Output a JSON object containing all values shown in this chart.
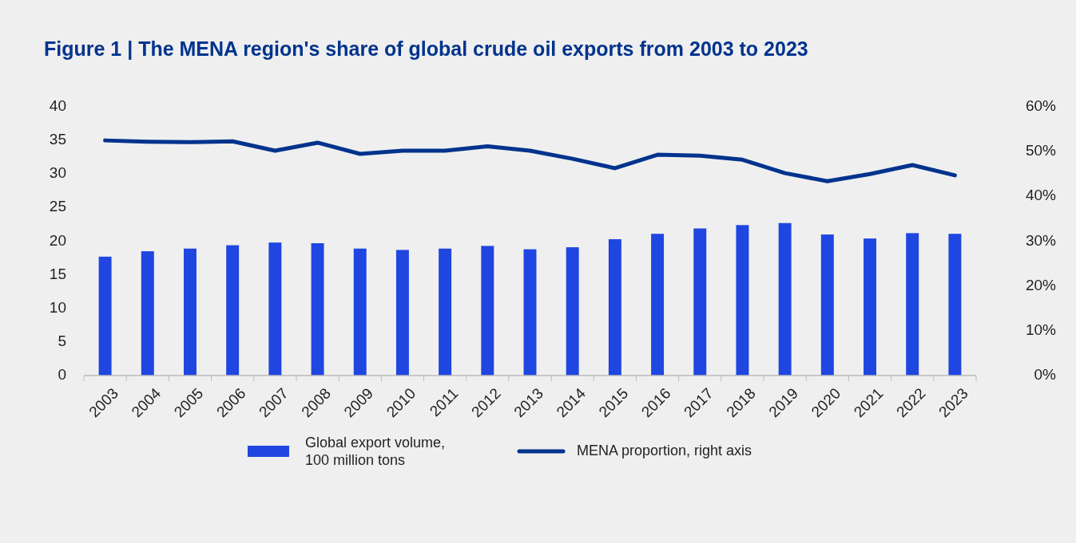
{
  "chart_data": {
    "type": "bar",
    "title": "Figure 1 | The MENA region's share of global crude oil exports from 2003 to 2023",
    "categories": [
      "2003",
      "2004",
      "2005",
      "2006",
      "2007",
      "2008",
      "2009",
      "2010",
      "2011",
      "2012",
      "2013",
      "2014",
      "2015",
      "2016",
      "2017",
      "2018",
      "2019",
      "2020",
      "2021",
      "2022",
      "2023"
    ],
    "series": [
      {
        "name": "Global export volume, 100 million tons",
        "color": "#1f46e0",
        "values": [
          17.7,
          18.5,
          18.9,
          19.4,
          19.8,
          19.7,
          18.9,
          18.7,
          18.9,
          19.3,
          18.8,
          19.1,
          20.3,
          21.1,
          21.9,
          22.4,
          22.7,
          21.0,
          20.4,
          21.2,
          21.1
        ]
      },
      {
        "name": "MENA proportion, right axis",
        "type": "line",
        "axis": "y2",
        "color": "#00338d",
        "values": [
          52.5,
          52.2,
          52.1,
          52.3,
          50.2,
          52.0,
          49.5,
          50.2,
          50.2,
          51.2,
          50.2,
          48.4,
          46.3,
          49.3,
          49.1,
          48.2,
          45.2,
          43.4,
          45.0,
          47.0,
          44.7
        ]
      }
    ],
    "ylim": [
      0,
      40
    ],
    "yticks": [
      0,
      5,
      10,
      15,
      20,
      25,
      30,
      35,
      40
    ],
    "y2lim": [
      0,
      60
    ],
    "y2ticks": [
      {
        "value": 0,
        "label": "0%"
      },
      {
        "value": 10,
        "label": "10%"
      },
      {
        "value": 20,
        "label": "20%"
      },
      {
        "value": 30,
        "label": "30%"
      },
      {
        "value": 40,
        "label": "40%"
      },
      {
        "value": 50,
        "label": "50%"
      },
      {
        "value": 60,
        "label": "60%"
      }
    ],
    "legend": "bottom",
    "marker": "none"
  }
}
